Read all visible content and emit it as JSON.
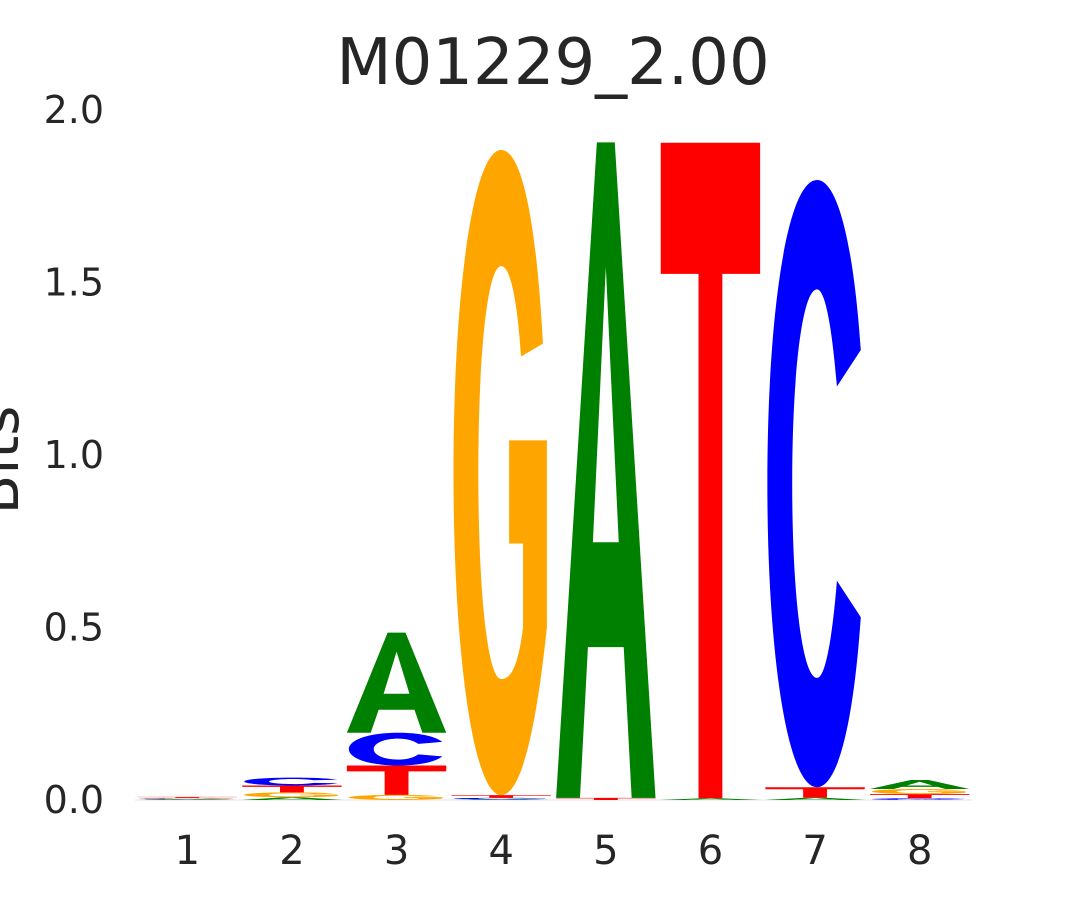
{
  "chart_data": {
    "type": "sequence_logo",
    "title": "M01229_2.00",
    "ylabel": "Bits",
    "xlabel": "",
    "ylim": [
      0,
      2.0
    ],
    "yticks": [
      "0.0",
      "0.5",
      "1.0",
      "1.5",
      "2.0"
    ],
    "positions": [
      "1",
      "2",
      "3",
      "4",
      "5",
      "6",
      "7",
      "8"
    ],
    "grid": false,
    "letter_colors": {
      "A": "#008000",
      "C": "#0000ff",
      "G": "#ffa500",
      "T": "#ff0000"
    },
    "stacks": [
      [
        {
          "letter": "A",
          "bits": 0.002
        },
        {
          "letter": "C",
          "bits": 0.002
        },
        {
          "letter": "G",
          "bits": 0.002
        },
        {
          "letter": "T",
          "bits": 0.003
        }
      ],
      [
        {
          "letter": "A",
          "bits": 0.008
        },
        {
          "letter": "G",
          "bits": 0.014
        },
        {
          "letter": "T",
          "bits": 0.02
        },
        {
          "letter": "C",
          "bits": 0.023
        }
      ],
      [
        {
          "letter": "G",
          "bits": 0.015
        },
        {
          "letter": "T",
          "bits": 0.085
        },
        {
          "letter": "C",
          "bits": 0.095
        },
        {
          "letter": "A",
          "bits": 0.29
        }
      ],
      [
        {
          "letter": "A",
          "bits": 0.002
        },
        {
          "letter": "C",
          "bits": 0.004
        },
        {
          "letter": "T",
          "bits": 0.008
        },
        {
          "letter": "G",
          "bits": 1.87
        }
      ],
      [
        {
          "letter": "T",
          "bits": 0.006
        },
        {
          "letter": "A",
          "bits": 1.9
        }
      ],
      [
        {
          "letter": "A",
          "bits": 0.005
        },
        {
          "letter": "T",
          "bits": 1.9
        }
      ],
      [
        {
          "letter": "A",
          "bits": 0.007
        },
        {
          "letter": "T",
          "bits": 0.03
        },
        {
          "letter": "C",
          "bits": 1.76
        }
      ],
      [
        {
          "letter": "C",
          "bits": 0.005
        },
        {
          "letter": "T",
          "bits": 0.012
        },
        {
          "letter": "G",
          "bits": 0.015
        },
        {
          "letter": "A",
          "bits": 0.026
        }
      ]
    ]
  }
}
